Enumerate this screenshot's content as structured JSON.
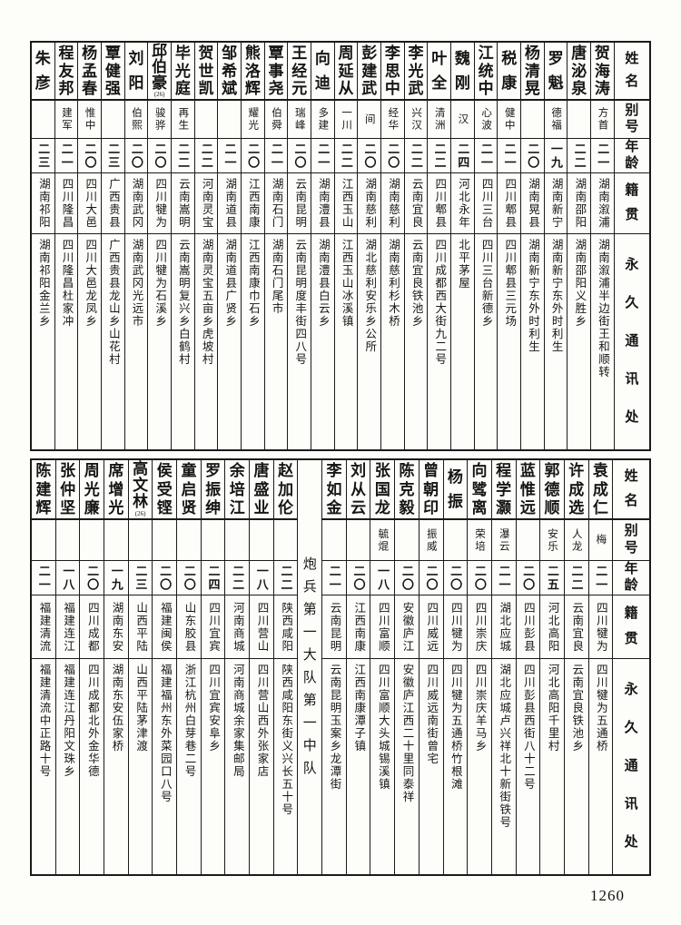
{
  "page": {
    "number": "1260"
  },
  "headers": {
    "name": "姓名",
    "alias": "别号",
    "age": "年龄",
    "origin": "籍贯",
    "address": "永久通讯处"
  },
  "sections": [
    {
      "entries": [
        {
          "name": "贺海涛",
          "alias": "方首",
          "age": "二一",
          "origin": "湖南溆浦",
          "address": "湖南溆浦半边街王和顺转"
        },
        {
          "name": "唐泌泉",
          "alias": "",
          "age": "二二",
          "origin": "湖南邵阳",
          "address": "湖南邵阳义胜乡"
        },
        {
          "name": "罗魁",
          "alias": "德福",
          "age": "一九",
          "origin": "湖南新宁",
          "address": "湖南新宁东外时利生"
        },
        {
          "name": "杨清晃",
          "alias": "",
          "age": "二〇",
          "origin": "湖南晃县",
          "address": "湖南新宁东外时利生"
        },
        {
          "name": "税康",
          "alias": "健中",
          "age": "二一",
          "origin": "四川郫县",
          "address": "四川郫县三元场"
        },
        {
          "name": "江统中",
          "alias": "心波",
          "age": "二一",
          "origin": "四川三台",
          "address": "四川三台新德乡"
        },
        {
          "name": "魏刚",
          "alias": "汉",
          "age": "二四",
          "origin": "河北永年",
          "address": "北平茅屋"
        },
        {
          "name": "叶全",
          "alias": "清洲",
          "age": "二二",
          "origin": "四川郫县",
          "address": "四川成都西大街九二号"
        },
        {
          "name": "李光武",
          "alias": "兴汉",
          "age": "二二",
          "origin": "云南宜良",
          "address": "云南宜良铁池乡"
        },
        {
          "name": "李思中",
          "alias": "经华",
          "age": "二〇",
          "origin": "湖南慈利",
          "address": "湖南慈利杉木桥"
        },
        {
          "name": "彭建武",
          "alias": "间",
          "age": "二〇",
          "origin": "湖南慈利",
          "address": "湖北慈利安乐乡公所"
        },
        {
          "name": "周延从",
          "alias": "一川",
          "age": "二二",
          "origin": "江西玉山",
          "address": "江西玉山冰溪镇"
        },
        {
          "name": "向迪",
          "alias": "多建",
          "age": "二一",
          "origin": "湖南澧县",
          "address": "湖南澧县白云乡"
        },
        {
          "name": "王经元",
          "alias": "瑞峰",
          "age": "二〇",
          "origin": "云南昆明",
          "address": "云南昆明度丰街四八号"
        },
        {
          "name": "覃事尧",
          "alias": "伯舜",
          "age": "二一",
          "origin": "湖南石门",
          "address": "湖南石门尾市"
        },
        {
          "name": "熊洛辉",
          "alias": "耀光",
          "age": "二〇",
          "origin": "江西南康",
          "address": "江西南康巾石乡"
        },
        {
          "name": "邹希斌",
          "alias": "",
          "age": "二一",
          "origin": "湖南道县",
          "address": "湖南道县广贤乡"
        },
        {
          "name": "贺世凯",
          "alias": "",
          "age": "二二",
          "origin": "河南灵宝",
          "address": "湖南灵宝五亩乡虎坡村"
        },
        {
          "name": "毕光庭",
          "alias": "再生",
          "age": "二二",
          "origin": "云南嵩明",
          "address": "云南嵩明复兴乡白鹤村"
        },
        {
          "name": "邱伯豪",
          "note": "(26)",
          "alias": "骏骅",
          "age": "二〇",
          "origin": "四川犍为",
          "address": "四川犍为石溪乡"
        },
        {
          "name": "刘阳",
          "alias": "伯熙",
          "age": "二〇",
          "origin": "湖南武冈",
          "address": "湖南武冈光远市"
        },
        {
          "name": "覃健强",
          "alias": "",
          "age": "二三",
          "origin": "广西贵县",
          "address": "广西贵县龙山乡山花村"
        },
        {
          "name": "杨孟春",
          "alias": "惟中",
          "age": "二〇",
          "origin": "四川大邑",
          "address": "四川大邑龙凤乡"
        },
        {
          "name": "程友邦",
          "alias": "建军",
          "age": "二一",
          "origin": "四川隆昌",
          "address": "四川隆昌杜家冲"
        },
        {
          "name": "朱彦",
          "alias": "",
          "age": "二三",
          "origin": "湖南祁阳",
          "address": "湖南祁阳金兰乡"
        }
      ]
    },
    {
      "entries": [
        {
          "name": "袁成仁",
          "alias": "梅",
          "age": "二一",
          "origin": "四川犍为",
          "address": "四川犍为五通桥"
        },
        {
          "name": "许成选",
          "alias": "人龙",
          "age": "二二",
          "origin": "云南宜良",
          "address": "云南宜良铁池乡"
        },
        {
          "name": "郭德顺",
          "alias": "安乐",
          "age": "二五",
          "origin": "河北高阳",
          "address": "河北高阳千里村"
        },
        {
          "name": "蓝惟远",
          "alias": "",
          "age": "二〇",
          "origin": "四川彭县",
          "address": "四川彭县西街八十二号"
        },
        {
          "name": "程学灏",
          "alias": "瀑云",
          "age": "二一",
          "origin": "湖北应城",
          "address": "湖北应城卢兴祥北十新街铁号"
        },
        {
          "name": "向骘离",
          "alias": "荣培",
          "age": "二〇",
          "origin": "四川崇庆",
          "address": "四川崇庆羊马乡"
        },
        {
          "name": "杨振",
          "alias": "",
          "age": "二〇",
          "origin": "四川犍为",
          "address": "四川犍为五通桥竹根滩"
        },
        {
          "name": "曾朝印",
          "alias": "振威",
          "age": "二〇",
          "origin": "四川威远",
          "address": "四川威远南街曾宅"
        },
        {
          "name": "陈克毅",
          "alias": "",
          "age": "二〇",
          "origin": "安徽庐江",
          "address": "安徽庐江西二十里同泰祥"
        },
        {
          "name": "张国龙",
          "alias": "毓焜",
          "age": "一八",
          "origin": "四川富顺",
          "address": "四川富顺大头城锡溪镇"
        },
        {
          "name": "刘从云",
          "alias": "",
          "age": "二〇",
          "origin": "江西南康",
          "address": "江西南康潭子镇"
        },
        {
          "name": "李如金",
          "alias": "",
          "age": "二一",
          "origin": "云南昆明",
          "address": "云南昆明玉案乡龙潭街"
        },
        {
          "divider": "炮兵第一大队第一中队"
        },
        {
          "name": "赵加伦",
          "alias": "",
          "age": "二二",
          "origin": "陕西咸阳",
          "address": "陕西咸阳东街义兴长五十号"
        },
        {
          "name": "唐盛业",
          "alias": "",
          "age": "一八",
          "origin": "四川营山",
          "address": "四川营山西外张家店"
        },
        {
          "name": "余培江",
          "alias": "",
          "age": "二二",
          "origin": "河南商城",
          "address": "河南商城余家集邮局"
        },
        {
          "name": "罗振绅",
          "alias": "",
          "age": "二四",
          "origin": "四川宜宾",
          "address": "四川宜宾安阜乡"
        },
        {
          "name": "童启贤",
          "alias": "",
          "age": "二〇",
          "origin": "山东胶县",
          "address": "浙江杭州白芽巷二号"
        },
        {
          "name": "侯受铿",
          "alias": "",
          "age": "二〇",
          "origin": "福建闽侯",
          "address": "福建福州东外菜园口八号"
        },
        {
          "name": "高文林",
          "note": "(26)",
          "alias": "",
          "age": "二三",
          "origin": "山西平陆",
          "address": "山西平陆茅津渡"
        },
        {
          "name": "席增光",
          "alias": "",
          "age": "一九",
          "origin": "湖南东安",
          "address": "湖南东安伍家桥"
        },
        {
          "name": "周光廉",
          "alias": "",
          "age": "二〇",
          "origin": "四川成都",
          "address": "四川成都北外金华德"
        },
        {
          "name": "张仲坚",
          "alias": "",
          "age": "一八",
          "origin": "福建连江",
          "address": "福建连江丹阳文珠乡"
        },
        {
          "name": "陈建辉",
          "alias": "",
          "age": "二一",
          "origin": "福建清流",
          "address": "福建清流中正路十号"
        }
      ]
    }
  ]
}
